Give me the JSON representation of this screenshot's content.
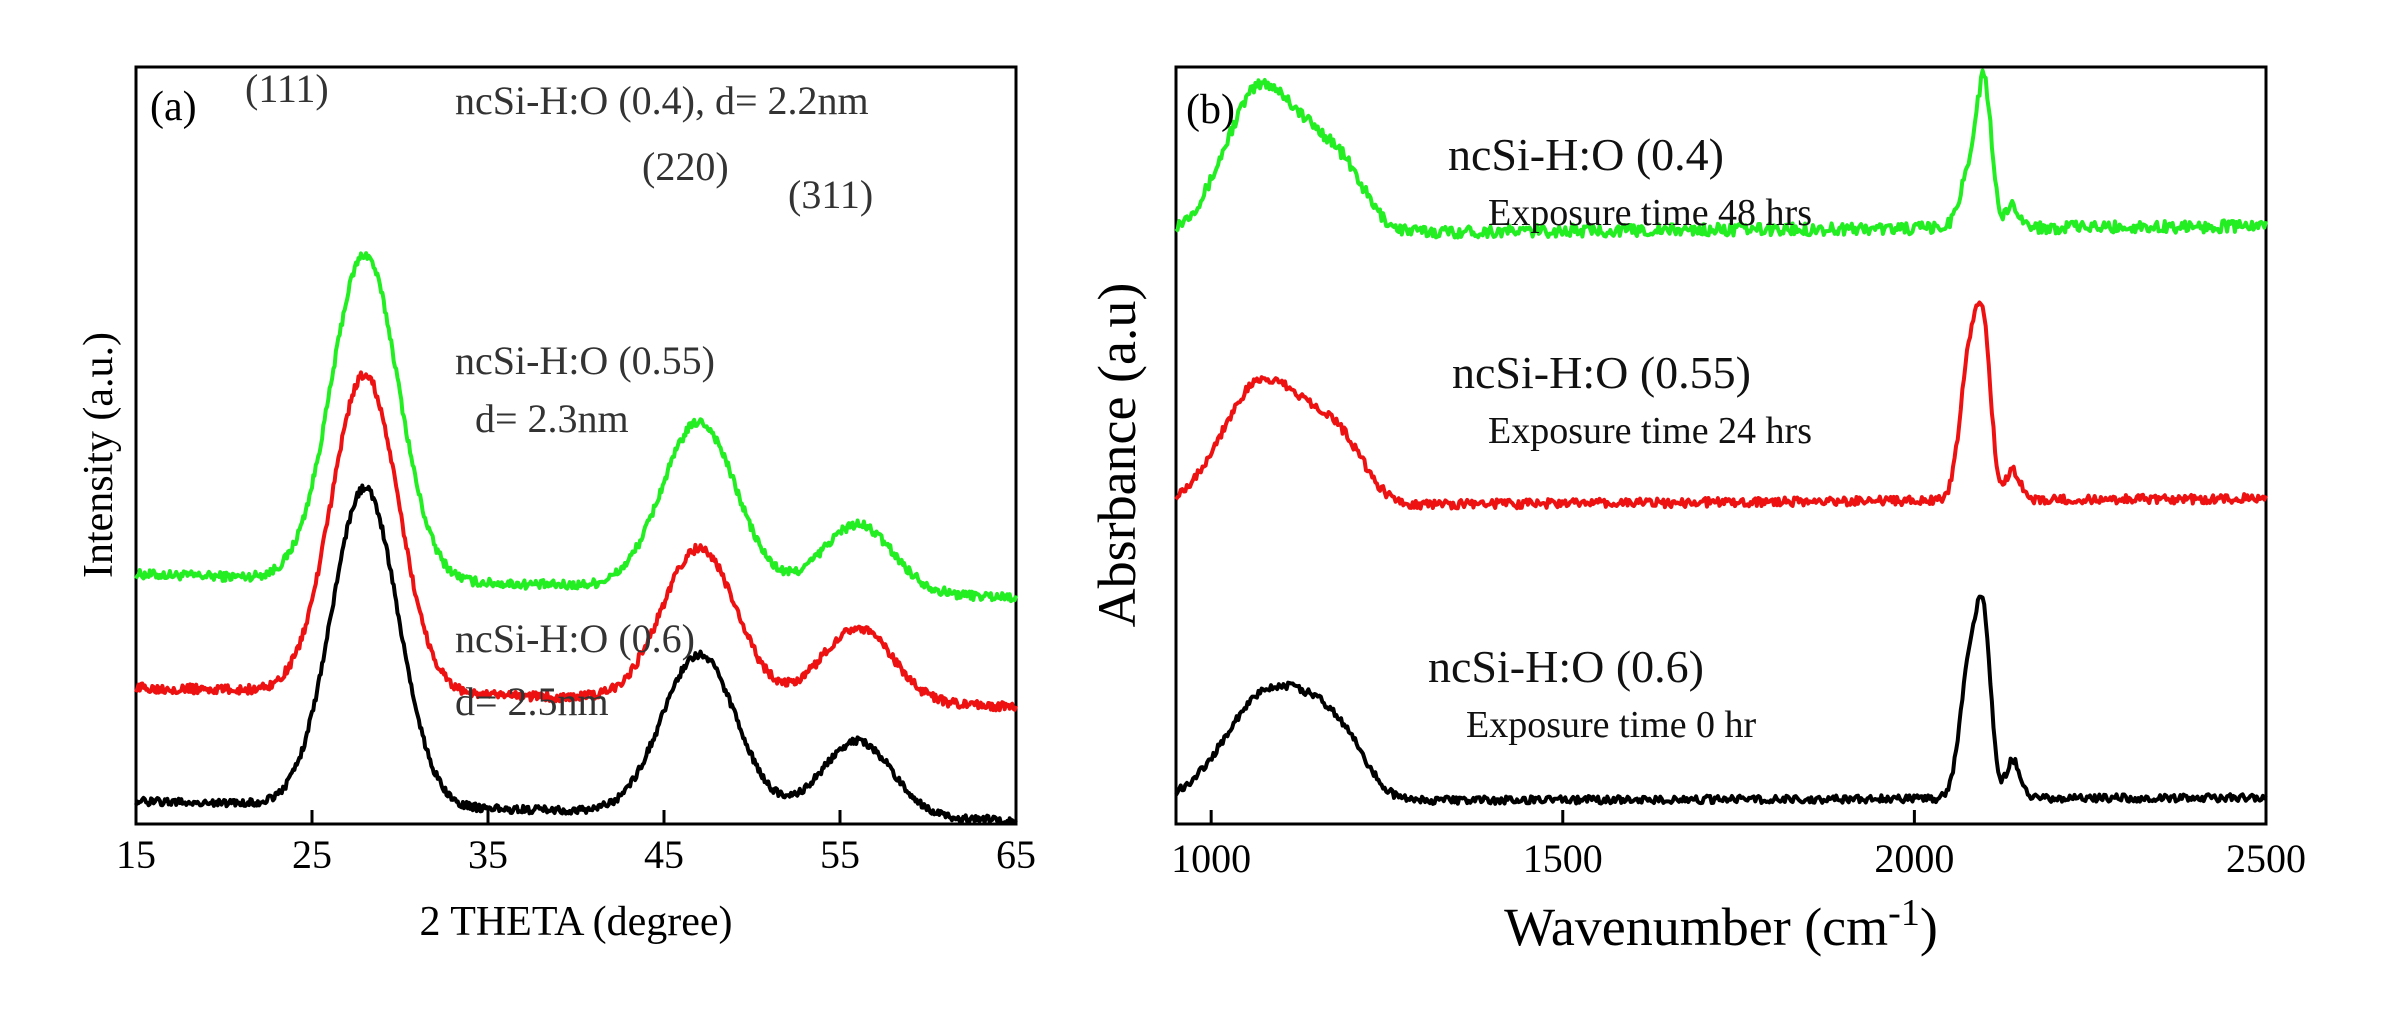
{
  "chart_data": [
    {
      "panel": "(a)",
      "type": "line",
      "xlabel": "2 THETA (degree)",
      "ylabel": "Intensity (a.u.)",
      "xlim": [
        15,
        65
      ],
      "xticks": [
        "15",
        "25",
        "35",
        "45",
        "55",
        "65"
      ],
      "peak_labels": [
        "(111)",
        "(220)",
        "(311)"
      ],
      "series": [
        {
          "name": "ncSi-H:O (0.4), d= 2.2nm",
          "label_lines": [
            "ncSi-H:O (0.4), d= 2.2nm"
          ],
          "color": "#22ee22",
          "baseline": 0.33,
          "peaks": [
            [
              28,
              0.43,
              1.9
            ],
            [
              47,
              0.22,
              2.1
            ],
            [
              56,
              0.09,
              2.0
            ]
          ],
          "slope": 0.03,
          "noise": 0.006
        },
        {
          "name": "ncSi-H:O (0.55)",
          "label_lines": [
            "ncSi-H:O (0.55)",
            "d= 2.3nm"
          ],
          "color": "#ee1111",
          "baseline": 0.18,
          "peaks": [
            [
              28,
              0.42,
              1.9
            ],
            [
              47,
              0.2,
              2.1
            ],
            [
              56,
              0.1,
              2.0
            ]
          ],
          "slope": 0.025,
          "noise": 0.006
        },
        {
          "name": "ncSi-H:O (0.6)",
          "label_lines": [
            "ncSi-H:O (0.6)",
            "d= 2.5nm"
          ],
          "color": "#000000",
          "baseline": 0.03,
          "peaks": [
            [
              28,
              0.42,
              1.9
            ],
            [
              47,
              0.21,
              2.1
            ],
            [
              56,
              0.1,
              2.0
            ]
          ],
          "slope": 0.025,
          "noise": 0.005
        }
      ]
    },
    {
      "panel": "(b)",
      "type": "line",
      "xlabel": "Wavenumber (cm-1)",
      "xlabel_base": "Wavenumber (cm",
      "xlabel_sup": "-1",
      "xlabel_close": ")",
      "ylabel": "Absrbance (a.u)",
      "xlim": [
        950,
        2500
      ],
      "xticks": [
        "1000",
        "1500",
        "2000",
        "2500"
      ],
      "series": [
        {
          "name": "ncSi-H:O (0.4)",
          "label_lines": [
            "ncSi-H:O (0.4)",
            "Exposure time 48 hrs"
          ],
          "color": "#22ee22",
          "baseline": 0.78,
          "peaks": [
            [
              1070,
              0.19,
              50
            ],
            [
              1160,
              0.08,
              40
            ],
            [
              1200,
              0.03,
              30
            ],
            [
              2080,
              0.08,
              14
            ],
            [
              2100,
              0.17,
              10
            ],
            [
              2140,
              0.03,
              10
            ]
          ],
          "slope": -0.01,
          "noise": 0.008
        },
        {
          "name": "ncSi-H:O (0.55)",
          "label_lines": [
            "ncSi-H:O (0.55)",
            "Exposure time 24 hrs"
          ],
          "color": "#ee1111",
          "baseline": 0.42,
          "peaks": [
            [
              1070,
              0.16,
              55
            ],
            [
              1160,
              0.07,
              40
            ],
            [
              1200,
              0.03,
              30
            ],
            [
              2080,
              0.2,
              14
            ],
            [
              2100,
              0.17,
              10
            ],
            [
              2140,
              0.04,
              10
            ]
          ],
          "slope": -0.01,
          "noise": 0.006
        },
        {
          "name": "ncSi-H:O (0.6)",
          "label_lines": [
            "ncSi-H:O (0.6)",
            "Exposure time 0 hr"
          ],
          "color": "#000000",
          "baseline": 0.03,
          "peaks": [
            [
              1080,
              0.14,
              60
            ],
            [
              1160,
              0.06,
              40
            ],
            [
              1200,
              0.03,
              30
            ],
            [
              2080,
              0.19,
              14
            ],
            [
              2100,
              0.18,
              10
            ],
            [
              2140,
              0.05,
              10
            ]
          ],
          "slope": -0.005,
          "noise": 0.005
        }
      ]
    }
  ]
}
